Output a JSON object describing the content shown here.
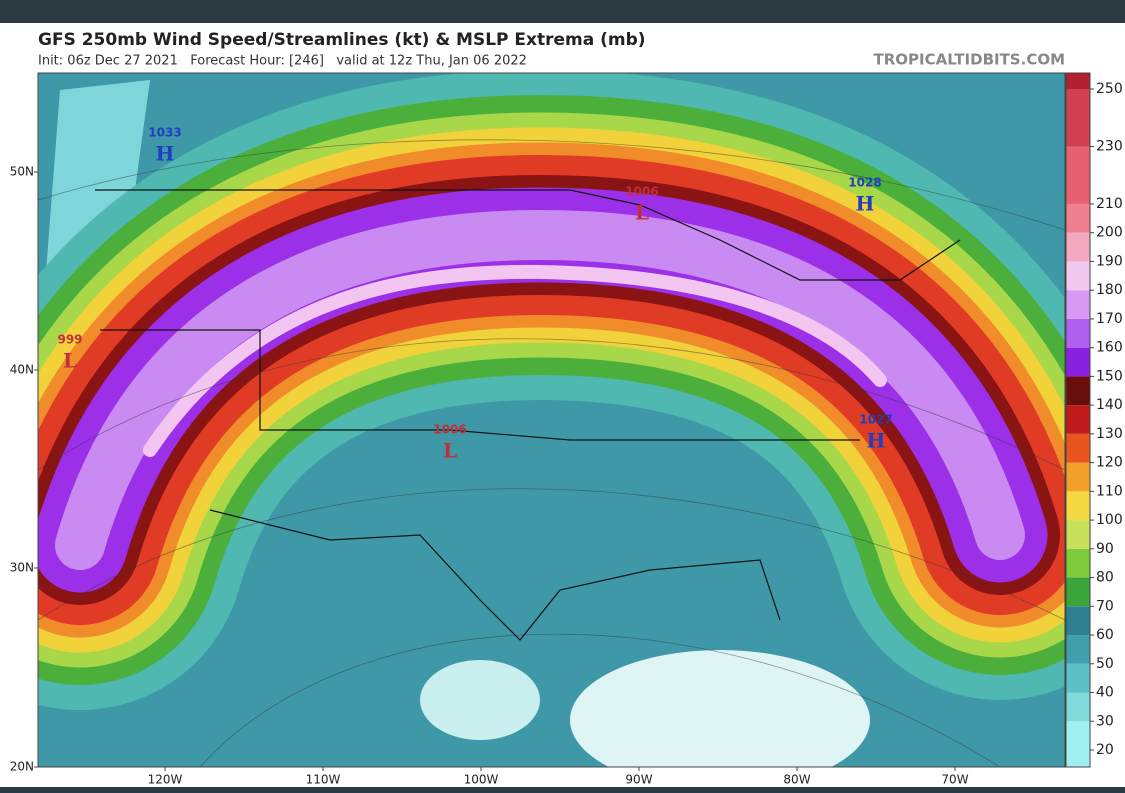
{
  "header": {
    "title": "GFS 250mb Wind Speed/Streamlines (kt) & MSLP Extrema (mb)",
    "subtitle": "Init: 06z Dec 27 2021   Forecast Hour: [246]   valid at 12z Thu, Jan 06 2022",
    "site": "TROPICALTIDBITS.COM"
  },
  "map": {
    "lat_labels": [
      "50N",
      "40N",
      "30N",
      "20N"
    ],
    "lon_labels": [
      "120W",
      "110W",
      "100W",
      "90W",
      "80W",
      "70W"
    ],
    "pressure_centers": [
      {
        "value": "1033",
        "kind": "H"
      },
      {
        "value": "1006",
        "kind": "L"
      },
      {
        "value": "1028",
        "kind": "H"
      },
      {
        "value": "999",
        "kind": "L"
      },
      {
        "value": "1006",
        "kind": "L"
      },
      {
        "value": "1027",
        "kind": "H"
      }
    ]
  },
  "colorbar": {
    "ticks": [
      250,
      230,
      210,
      200,
      190,
      180,
      170,
      160,
      150,
      140,
      130,
      120,
      110,
      100,
      90,
      80,
      70,
      60,
      50,
      40,
      30,
      20
    ]
  }
}
